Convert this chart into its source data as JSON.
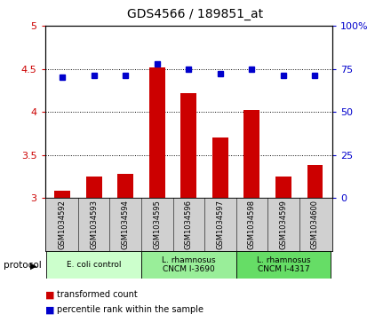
{
  "title": "GDS4566 / 189851_at",
  "samples": [
    "GSM1034592",
    "GSM1034593",
    "GSM1034594",
    "GSM1034595",
    "GSM1034596",
    "GSM1034597",
    "GSM1034598",
    "GSM1034599",
    "GSM1034600"
  ],
  "transformed_count": [
    3.08,
    3.25,
    3.28,
    4.52,
    4.22,
    3.7,
    4.02,
    3.25,
    3.38
  ],
  "percentile_rank": [
    70,
    71,
    71,
    78,
    75,
    72,
    75,
    71,
    71
  ],
  "ylim_left": [
    3.0,
    5.0
  ],
  "ylim_right": [
    0,
    100
  ],
  "yticks_left": [
    3.0,
    3.5,
    4.0,
    4.5,
    5.0
  ],
  "yticks_right": [
    0,
    25,
    50,
    75,
    100
  ],
  "yticklabels_left": [
    "3",
    "3.5",
    "4",
    "4.5",
    "5"
  ],
  "yticklabels_right": [
    "0",
    "25",
    "50",
    "75",
    "100%"
  ],
  "bar_color": "#cc0000",
  "dot_color": "#0000cc",
  "bar_bottom": 3.0,
  "groups": [
    {
      "label": "E. coli control",
      "start": 0,
      "end": 3,
      "color": "#ccffcc"
    },
    {
      "label": "L. rhamnosus\nCNCM I-3690",
      "start": 3,
      "end": 6,
      "color": "#99ee99"
    },
    {
      "label": "L. rhamnosus\nCNCM I-4317",
      "start": 6,
      "end": 9,
      "color": "#66dd66"
    }
  ],
  "protocol_label": "protocol",
  "legend_items": [
    {
      "label": "transformed count",
      "color": "#cc0000"
    },
    {
      "label": "percentile rank within the sample",
      "color": "#0000cc"
    }
  ],
  "background_color": "#ffffff",
  "sample_box_color": "#d0d0d0",
  "grid_linestyle": ":",
  "grid_color": "#000000"
}
